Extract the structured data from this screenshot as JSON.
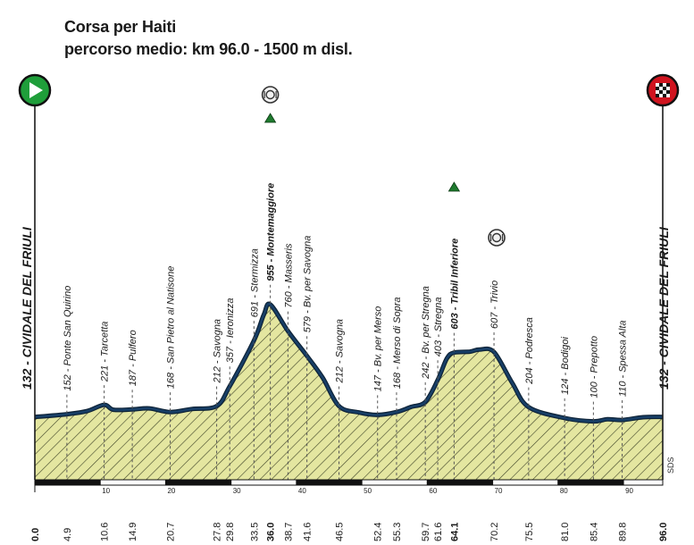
{
  "title": "Corsa per Haiti",
  "subtitle": "percorso medio: km 96.0 - 1500 m disl.",
  "start_label": "132 - CIVIDALE DEL FRIULI",
  "finish_label": "132 - CIVIDALE DEL FRIULI",
  "logo_text": "SDS",
  "chart_data": {
    "type": "area",
    "title": "Corsa per Haiti",
    "subtitle": "percorso medio: km 96.0 - 1500 m disl.",
    "xlim": [
      0,
      96
    ],
    "x_unit": "km",
    "y_unit": "m",
    "scale_ticks": [
      10,
      20,
      30,
      40,
      50,
      60,
      70,
      80,
      90
    ],
    "profile": [
      [
        0,
        132
      ],
      [
        4.9,
        152
      ],
      [
        8,
        175
      ],
      [
        10.6,
        221
      ],
      [
        12,
        185
      ],
      [
        14.9,
        187
      ],
      [
        17.5,
        195
      ],
      [
        20.7,
        168
      ],
      [
        24,
        190
      ],
      [
        27.8,
        212
      ],
      [
        29.8,
        357
      ],
      [
        33.5,
        691
      ],
      [
        35,
        880
      ],
      [
        36,
        955
      ],
      [
        38.7,
        760
      ],
      [
        41.6,
        579
      ],
      [
        44,
        420
      ],
      [
        46.5,
        212
      ],
      [
        49.5,
        165
      ],
      [
        52.4,
        147
      ],
      [
        55.3,
        168
      ],
      [
        57.5,
        205
      ],
      [
        59.7,
        242
      ],
      [
        61.6,
        403
      ],
      [
        63,
        560
      ],
      [
        64.1,
        603
      ],
      [
        66.5,
        610
      ],
      [
        68,
        625
      ],
      [
        70.2,
        607
      ],
      [
        73,
        380
      ],
      [
        75.5,
        204
      ],
      [
        81,
        124
      ],
      [
        85.4,
        100
      ],
      [
        87.5,
        115
      ],
      [
        89.8,
        110
      ],
      [
        93,
        130
      ],
      [
        96,
        132
      ]
    ],
    "points": [
      {
        "km": 0.0,
        "label": "132 - CIVIDALE DEL FRIULI",
        "type": "start"
      },
      {
        "km": 4.9,
        "label": "152 - Ponte San Quirino"
      },
      {
        "km": 10.6,
        "label": "221 - Tarcetta"
      },
      {
        "km": 14.9,
        "label": "187 - Pulfero"
      },
      {
        "km": 20.7,
        "label": "168 - San Pietro al Natisone"
      },
      {
        "km": 27.8,
        "label": "212 - Savogna"
      },
      {
        "km": 29.8,
        "label": "357 - Ieronizza"
      },
      {
        "km": 33.5,
        "label": "691 - Stermizza"
      },
      {
        "km": 36.0,
        "label": "955 - Montemaggiore",
        "bold": true,
        "gpm": true,
        "food": true
      },
      {
        "km": 38.7,
        "label": "760 - Masseris"
      },
      {
        "km": 41.6,
        "label": "579 - Bv. per Savogna"
      },
      {
        "km": 46.5,
        "label": "212 - Savogna"
      },
      {
        "km": 52.4,
        "label": "147 - Bv. per Merso"
      },
      {
        "km": 55.3,
        "label": "168 - Merso di Sopra"
      },
      {
        "km": 59.7,
        "label": "242 - Bv. per Stregna"
      },
      {
        "km": 61.6,
        "label": "403 - Stregna"
      },
      {
        "km": 64.1,
        "label": "603 - Tribil Inferiore",
        "bold": true,
        "gpm": true
      },
      {
        "km": 70.2,
        "label": "607 - Trivio",
        "food": true
      },
      {
        "km": 75.5,
        "label": "204 - Podresca"
      },
      {
        "km": 81.0,
        "label": "124 - Bodigoi"
      },
      {
        "km": 85.4,
        "label": "100 - Prepotto"
      },
      {
        "km": 89.8,
        "label": "110 - Spessa Alta"
      },
      {
        "km": 96.0,
        "label": "132 - CIVIDALE DEL FRIULI",
        "type": "finish"
      }
    ],
    "km_labels": [
      "0.0",
      "4.9",
      "10.6",
      "14.9",
      "20.7",
      "27.8",
      "29.8",
      "33.5",
      "36.0",
      "38.7",
      "41.6",
      "46.5",
      "52.4",
      "55.3",
      "59.7",
      "61.6",
      "64.1",
      "70.2",
      "75.5",
      "81.0",
      "85.4",
      "89.8",
      "96.0"
    ],
    "colors": {
      "fill": "#e4e6a0",
      "hatch": "#3d4226",
      "outline": "#183f67",
      "start": "#1f9e3a",
      "finish": "#d0141f",
      "gpm": "#1f7a2e"
    }
  }
}
